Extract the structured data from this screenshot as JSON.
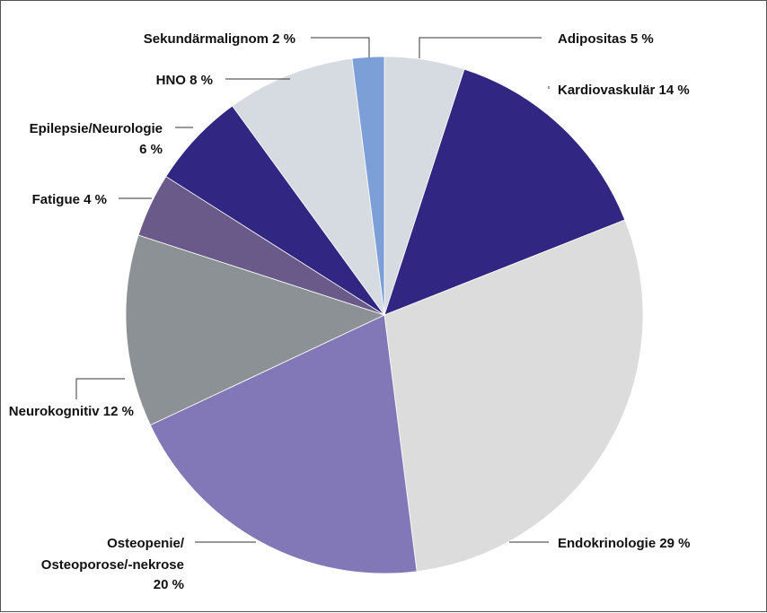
{
  "chart_data": {
    "type": "pie",
    "title": "",
    "slices": [
      {
        "label": "Adipositas 5 %",
        "value": 5,
        "color": "#d6dbe1"
      },
      {
        "label": "Kardiovaskulär 14 %",
        "value": 14,
        "color": "#312783"
      },
      {
        "label": "Endokrinologie 29 %",
        "value": 29,
        "color": "#dcdcdc"
      },
      {
        "label": "Osteopenie/ Osteoporose/-nekrose 20 %",
        "value": 20,
        "color": "#8278b8"
      },
      {
        "label": "Neurokognitiv 12 %",
        "value": 12,
        "color": "#8c9196"
      },
      {
        "label": "Fatigue 4 %",
        "value": 4,
        "color": "#6a5a8a"
      },
      {
        "label": "Epilepsie/Neurologie 6 %",
        "value": 6,
        "color": "#312783"
      },
      {
        "label": "HNO 8 %",
        "value": 8,
        "color": "#d6dbe1"
      },
      {
        "label": "Sekundärmalignom 2 %",
        "value": 2,
        "color": "#7b9fd6"
      }
    ],
    "labels": {
      "adipositas": "Adipositas 5 %",
      "kardio": "Kardiovaskulär 14 %",
      "endo": "Endokrinologie 29 %",
      "osteo_line1": "Osteopenie/",
      "osteo_line2": "Osteoporose/-nekrose",
      "osteo_line3": "20 %",
      "neurokog": "Neurokognitiv 12 %",
      "fatigue": "Fatigue 4 %",
      "epi_line1": "Epilepsie/Neurologie",
      "epi_line2": "6 %",
      "hno": "HNO 8 %",
      "sek": "Sekundärmalignom 2 %"
    }
  }
}
